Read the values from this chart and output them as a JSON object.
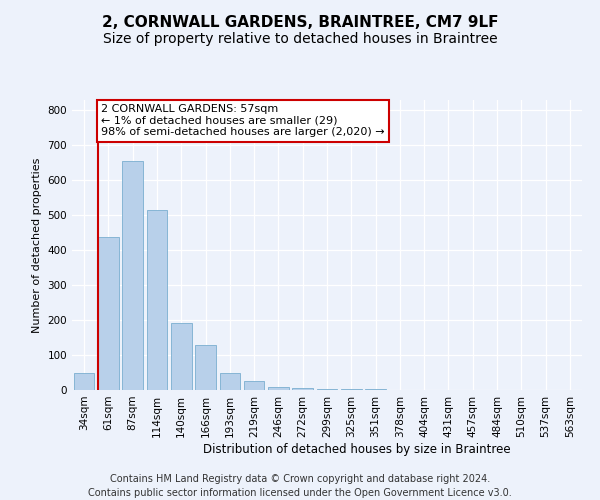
{
  "title": "2, CORNWALL GARDENS, BRAINTREE, CM7 9LF",
  "subtitle": "Size of property relative to detached houses in Braintree",
  "xlabel": "Distribution of detached houses by size in Braintree",
  "ylabel": "Number of detached properties",
  "categories": [
    "34sqm",
    "61sqm",
    "87sqm",
    "114sqm",
    "140sqm",
    "166sqm",
    "193sqm",
    "219sqm",
    "246sqm",
    "272sqm",
    "299sqm",
    "325sqm",
    "351sqm",
    "378sqm",
    "404sqm",
    "431sqm",
    "457sqm",
    "484sqm",
    "510sqm",
    "537sqm",
    "563sqm"
  ],
  "values": [
    48,
    438,
    655,
    515,
    192,
    128,
    50,
    26,
    10,
    5,
    4,
    3,
    2,
    1,
    1,
    1,
    0,
    0,
    0,
    0,
    0
  ],
  "bar_color": "#b8d0ea",
  "bar_edge_color": "#7aaed0",
  "property_line_color": "#cc0000",
  "property_line_x": 0.575,
  "annotation_line1": "2 CORNWALL GARDENS: 57sqm",
  "annotation_line2": "← 1% of detached houses are smaller (29)",
  "annotation_line3": "98% of semi-detached houses are larger (2,020) →",
  "annotation_box_color": "#ffffff",
  "annotation_box_edge": "#cc0000",
  "ylim": [
    0,
    830
  ],
  "yticks": [
    0,
    100,
    200,
    300,
    400,
    500,
    600,
    700,
    800
  ],
  "footer_line1": "Contains HM Land Registry data © Crown copyright and database right 2024.",
  "footer_line2": "Contains public sector information licensed under the Open Government Licence v3.0.",
  "bg_color": "#edf2fb",
  "plot_bg_color": "#edf2fb",
  "grid_color": "#ffffff",
  "title_fontsize": 11,
  "subtitle_fontsize": 10,
  "ylabel_fontsize": 8,
  "tick_fontsize": 7.5,
  "annotation_fontsize": 8,
  "footer_fontsize": 7
}
